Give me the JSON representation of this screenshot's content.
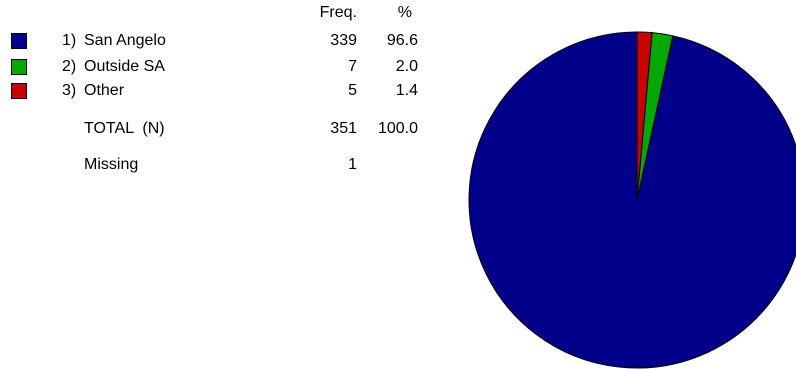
{
  "chart_data": {
    "type": "pie",
    "header": {
      "freq": "Freq.",
      "pct": "%"
    },
    "categories": [
      {
        "num": "1)",
        "label": "San Angelo",
        "freq": "339",
        "pct": "96.6",
        "value": 339,
        "color": "#00008b"
      },
      {
        "num": "2)",
        "label": "Outside SA",
        "freq": "7",
        "pct": "2.0",
        "value": 7,
        "color": "#00aa00"
      },
      {
        "num": "3)",
        "label": "Other",
        "freq": "5",
        "pct": "1.4",
        "value": 5,
        "color": "#cc0000"
      }
    ],
    "total": {
      "label": "TOTAL  (N)",
      "freq": "351",
      "pct": "100.0"
    },
    "missing": {
      "label": "Missing",
      "freq": "1"
    },
    "start_angle_deg": 0,
    "direction": "counterclockwise"
  }
}
